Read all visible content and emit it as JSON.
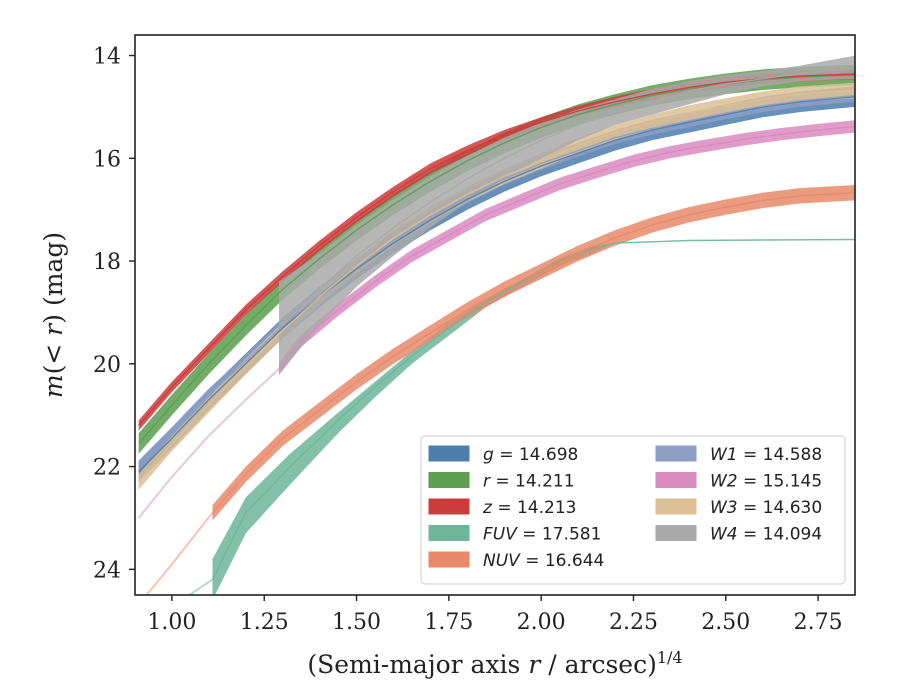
{
  "chart_data": {
    "type": "line",
    "title": "",
    "xlabel": "(Semi-major axis r / arcsec)",
    "xlabel_italic": "r",
    "xlabel_exponent": "1/4",
    "ylabel": "m(< r) (mag)",
    "xlim": [
      0.9,
      2.85
    ],
    "ylim": [
      24.5,
      13.6
    ],
    "y_inverted": true,
    "grid": false,
    "legend_position": "lower-right",
    "xticks": [
      "1.00",
      "1.25",
      "1.50",
      "1.75",
      "2.00",
      "2.25",
      "2.50",
      "2.75"
    ],
    "xtick_values": [
      1.0,
      1.25,
      1.5,
      1.75,
      2.0,
      2.25,
      2.5,
      2.75
    ],
    "yticks": [
      "14",
      "16",
      "18",
      "20",
      "22",
      "24"
    ],
    "ytick_values": [
      14,
      16,
      18,
      20,
      22,
      24
    ],
    "series": [
      {
        "name": "g",
        "legend_value": "14.698",
        "color": "#4c7dad",
        "x": [
          0.91,
          1.0,
          1.1,
          1.2,
          1.3,
          1.4,
          1.5,
          1.6,
          1.7,
          1.8,
          1.9,
          2.0,
          2.1,
          2.2,
          2.3,
          2.4,
          2.5,
          2.6,
          2.7,
          2.85
        ],
        "y": [
          22.1,
          21.45,
          20.7,
          20.0,
          19.3,
          18.7,
          18.15,
          17.65,
          17.2,
          16.8,
          16.45,
          16.15,
          15.9,
          15.65,
          15.45,
          15.3,
          15.15,
          15.0,
          14.9,
          14.8
        ],
        "band": 0.2
      },
      {
        "name": "r",
        "legend_value": "14.211",
        "color": "#5a9e4e",
        "x": [
          0.91,
          1.0,
          1.1,
          1.2,
          1.3,
          1.4,
          1.5,
          1.6,
          1.7,
          1.8,
          1.9,
          2.0,
          2.1,
          2.2,
          2.3,
          2.4,
          2.5,
          2.6,
          2.7,
          2.85
        ],
        "y": [
          21.55,
          20.8,
          20.0,
          19.25,
          18.55,
          17.95,
          17.4,
          16.9,
          16.45,
          16.05,
          15.7,
          15.4,
          15.15,
          14.95,
          14.78,
          14.65,
          14.55,
          14.47,
          14.42,
          14.38
        ],
        "band": 0.2
      },
      {
        "name": "z",
        "legend_value": "14.213",
        "color": "#cc3b3b",
        "x": [
          0.91,
          1.0,
          1.1,
          1.2,
          1.3,
          1.4,
          1.5,
          1.6,
          1.7,
          1.8,
          1.9,
          2.0,
          2.1,
          2.2,
          2.3,
          2.4,
          2.5,
          2.6,
          2.7,
          2.85
        ],
        "y": [
          21.2,
          20.45,
          19.7,
          18.95,
          18.3,
          17.7,
          17.15,
          16.65,
          16.2,
          15.85,
          15.55,
          15.3,
          15.08,
          14.9,
          14.75,
          14.62,
          14.52,
          14.45,
          14.4,
          14.36
        ],
        "band": 0.1
      },
      {
        "name": "FUV",
        "legend_value": "17.581",
        "color": "#6db59b",
        "x": [
          1.11,
          1.2,
          1.32,
          1.45,
          1.55,
          1.65,
          1.75,
          1.85,
          1.95,
          2.05,
          2.14,
          2.2,
          2.4,
          2.6,
          2.85
        ],
        "y": [
          24.2,
          22.9,
          22.0,
          21.1,
          20.45,
          19.85,
          19.3,
          18.8,
          18.4,
          18.0,
          17.75,
          17.65,
          17.6,
          17.59,
          17.58
        ],
        "band_lo": [
          23.8,
          22.6,
          21.75,
          20.95,
          20.35,
          19.75,
          19.2,
          18.75,
          18.35,
          17.95,
          17.7,
          17.65,
          17.6,
          17.59,
          17.58
        ],
        "band_hi": [
          24.6,
          23.3,
          22.35,
          21.35,
          20.65,
          20.0,
          19.45,
          18.9,
          18.5,
          18.1,
          17.85,
          17.65,
          17.6,
          17.59,
          17.58
        ],
        "faint_x": [
          0.9,
          1.11
        ],
        "faint_y": [
          25.2,
          24.2
        ]
      },
      {
        "name": "NUV",
        "legend_value": "16.644",
        "color": "#e8896a",
        "x": [
          1.11,
          1.2,
          1.3,
          1.4,
          1.5,
          1.6,
          1.7,
          1.8,
          1.9,
          2.0,
          2.1,
          2.2,
          2.3,
          2.4,
          2.5,
          2.6,
          2.7,
          2.85
        ],
        "y": [
          22.9,
          22.15,
          21.45,
          20.9,
          20.35,
          19.85,
          19.4,
          18.95,
          18.55,
          18.2,
          17.85,
          17.55,
          17.3,
          17.1,
          16.95,
          16.82,
          16.73,
          16.67
        ],
        "band": 0.15,
        "faint_x": [
          0.92,
          1.0,
          1.11
        ],
        "faint_y": [
          24.6,
          23.9,
          22.9
        ]
      },
      {
        "name": "W1",
        "legend_value": "14.588",
        "color": "#8d9fc4",
        "x": [
          0.91,
          1.0,
          1.1,
          1.2,
          1.3,
          1.4,
          1.5,
          1.6,
          1.7,
          1.8,
          1.9,
          2.0,
          2.1,
          2.2,
          2.3,
          2.4,
          2.5,
          2.6,
          2.7,
          2.85
        ],
        "y": [
          22.0,
          21.35,
          20.6,
          19.95,
          19.25,
          18.65,
          18.1,
          17.6,
          17.15,
          16.75,
          16.4,
          16.1,
          15.85,
          15.6,
          15.42,
          15.27,
          15.12,
          14.98,
          14.88,
          14.78
        ],
        "band": 0.12
      },
      {
        "name": "W2",
        "legend_value": "15.145",
        "color": "#d98ac0",
        "x": [
          1.29,
          1.35,
          1.45,
          1.55,
          1.65,
          1.75,
          1.85,
          1.95,
          2.05,
          2.15,
          2.25,
          2.35,
          2.45,
          2.55,
          2.65,
          2.75,
          2.85
        ],
        "y": [
          20.1,
          19.55,
          18.95,
          18.4,
          17.9,
          17.5,
          17.1,
          16.8,
          16.5,
          16.27,
          16.05,
          15.88,
          15.75,
          15.63,
          15.53,
          15.45,
          15.38
        ],
        "band": 0.12,
        "faint_x": [
          0.91,
          1.0,
          1.1,
          1.2,
          1.29
        ],
        "faint_y": [
          23.0,
          22.2,
          21.4,
          20.7,
          20.1
        ]
      },
      {
        "name": "W3",
        "legend_value": "14.630",
        "color": "#ddbf95",
        "x": [
          0.91,
          1.0,
          1.1,
          1.2,
          1.3,
          1.4,
          1.5,
          1.6,
          1.7,
          1.8,
          1.9,
          2.0,
          2.1,
          2.2,
          2.3,
          2.4,
          2.5,
          2.6,
          2.7,
          2.85
        ],
        "y": [
          22.3,
          21.55,
          20.8,
          20.05,
          19.35,
          18.7,
          18.1,
          17.55,
          17.1,
          16.7,
          16.35,
          16.05,
          15.75,
          15.5,
          15.3,
          15.12,
          14.98,
          14.85,
          14.75,
          14.68
        ],
        "band": 0.15
      },
      {
        "name": "W4",
        "legend_value": "14.094",
        "color": "#a9a9a9",
        "x": [
          1.29,
          1.4,
          1.5,
          1.6,
          1.7,
          1.8,
          1.9,
          2.0,
          2.1,
          2.2,
          2.3,
          2.4,
          2.5,
          2.6,
          2.7,
          2.85
        ],
        "y": [
          19.3,
          18.55,
          17.9,
          17.35,
          16.85,
          16.4,
          16.0,
          15.65,
          15.35,
          15.1,
          14.9,
          14.7,
          14.55,
          14.45,
          14.35,
          14.25
        ],
        "band_lo": [
          18.4,
          17.85,
          17.3,
          16.8,
          16.35,
          15.95,
          15.6,
          15.3,
          15.05,
          14.85,
          14.65,
          14.5,
          14.38,
          14.3,
          14.2,
          14.0
        ],
        "band_hi": [
          20.2,
          19.25,
          18.5,
          17.9,
          17.35,
          16.85,
          16.4,
          16.0,
          15.65,
          15.35,
          15.15,
          14.95,
          14.75,
          14.6,
          14.5,
          14.45
        ]
      }
    ],
    "legend_columns": [
      [
        "g",
        "r",
        "z",
        "FUV",
        "NUV"
      ],
      [
        "W1",
        "W2",
        "W3",
        "W4"
      ]
    ]
  }
}
